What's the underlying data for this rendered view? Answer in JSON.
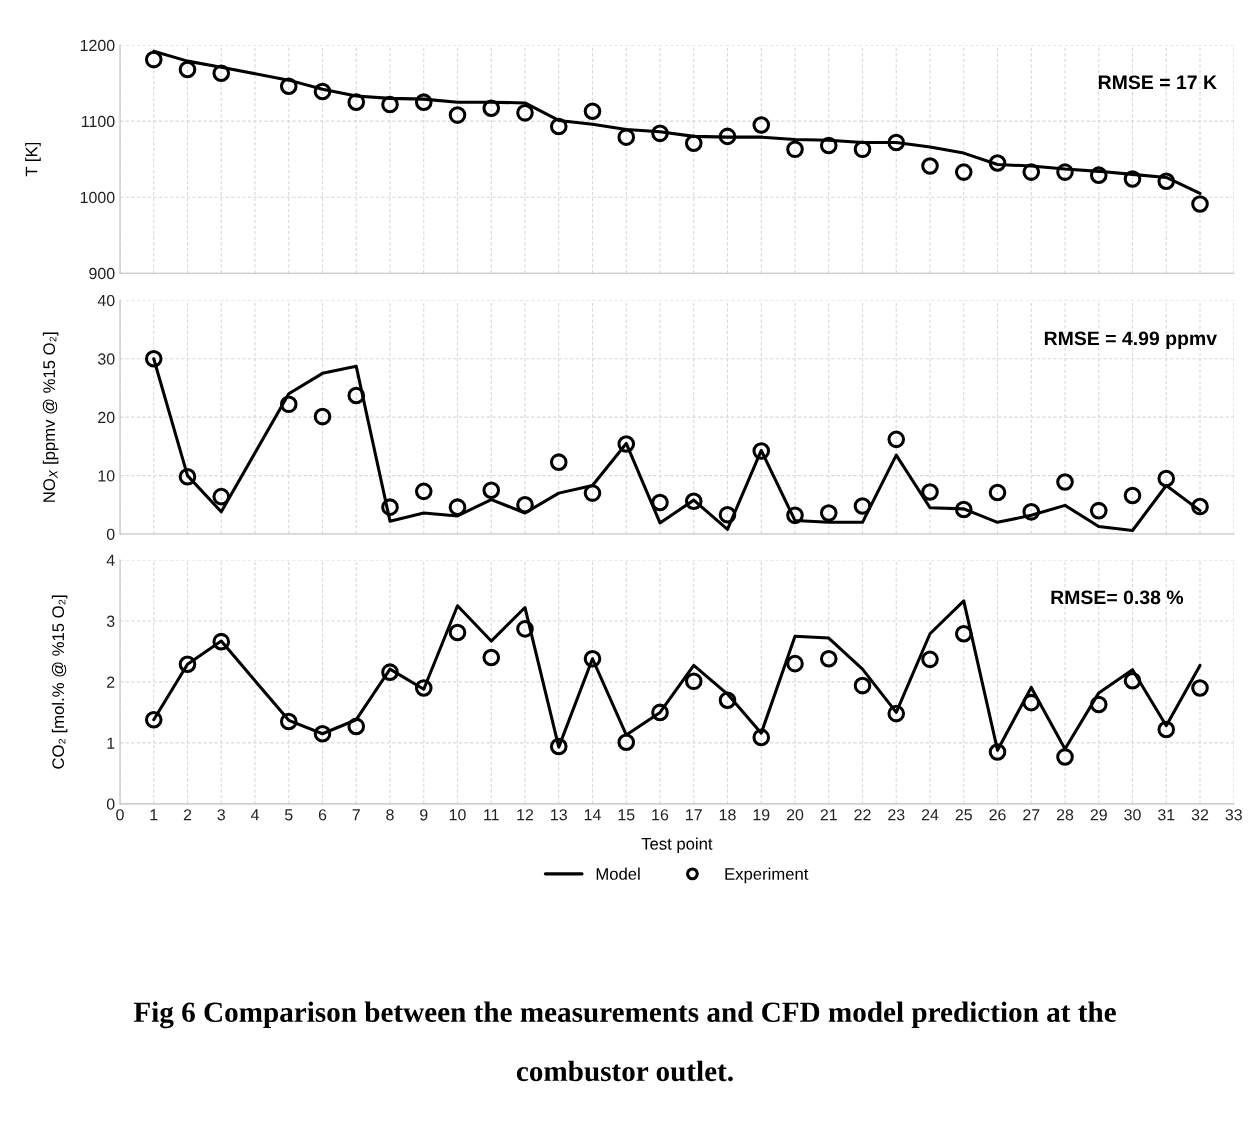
{
  "chart_data": [
    {
      "type": "line",
      "ylabel": "T [K]",
      "x": [
        1,
        2,
        3,
        5,
        6,
        7,
        8,
        9,
        10,
        11,
        12,
        13,
        14,
        15,
        16,
        17,
        18,
        19,
        20,
        21,
        22,
        23,
        24,
        25,
        26,
        27,
        28,
        29,
        30,
        31,
        32
      ],
      "xlim": [
        0,
        33
      ],
      "xticks": [
        0,
        1,
        2,
        3,
        4,
        5,
        6,
        7,
        8,
        9,
        10,
        11,
        12,
        13,
        14,
        15,
        16,
        17,
        18,
        19,
        20,
        21,
        22,
        23,
        24,
        25,
        26,
        27,
        28,
        29,
        30,
        31,
        32,
        33
      ],
      "ylim": [
        900,
        1200
      ],
      "yticks": [
        900,
        1000,
        1100,
        1200
      ],
      "tick_labels": "y",
      "grid": true,
      "annotations": [
        "RMSE = 17 K"
      ],
      "series": [
        {
          "color": "#000000",
          "marker": "none",
          "line_style": "solid",
          "values": [
            1192,
            1179,
            1171,
            1154,
            1142,
            1133,
            1130,
            1129,
            1125,
            1125,
            1124,
            1101,
            1096,
            1089,
            1086,
            1080,
            1079,
            1079,
            1076,
            1075,
            1072,
            1072,
            1066,
            1058,
            1043,
            1041,
            1037,
            1034,
            1030,
            1026,
            1005
          ]
        },
        {
          "type": "scatter",
          "color": "#000000",
          "marker": "circle",
          "values": [
            1181,
            1168,
            1163,
            1146,
            1139,
            1125,
            1122,
            1125,
            1108,
            1117,
            1111,
            1093,
            1113,
            1079,
            1084,
            1071,
            1080,
            1095,
            1063,
            1068,
            1063,
            1072,
            1041,
            1033,
            1045,
            1033,
            1033,
            1029,
            1024,
            1021,
            991
          ]
        }
      ]
    },
    {
      "type": "line",
      "ylabel": "NO$_{X}$ [ppmv @ %15 O₂]",
      "x": [
        1,
        2,
        3,
        5,
        6,
        7,
        8,
        9,
        10,
        11,
        12,
        13,
        14,
        15,
        16,
        17,
        18,
        19,
        20,
        21,
        22,
        23,
        24,
        25,
        26,
        27,
        28,
        29,
        30,
        31,
        32
      ],
      "xlim": [
        0,
        33
      ],
      "xticks": [
        0,
        1,
        2,
        3,
        4,
        5,
        6,
        7,
        8,
        9,
        10,
        11,
        12,
        13,
        14,
        15,
        16,
        17,
        18,
        19,
        20,
        21,
        22,
        23,
        24,
        25,
        26,
        27,
        28,
        29,
        30,
        31,
        32,
        33
      ],
      "ylim": [
        0,
        40
      ],
      "yticks": [
        0,
        10,
        20,
        30,
        40
      ],
      "tick_labels": "y",
      "grid": true,
      "annotations": [
        "RMSE = 4.99 ppmv"
      ],
      "series": [
        {
          "color": "#000000",
          "marker": "none",
          "line_style": "solid",
          "values": [
            30,
            10,
            3.8,
            24,
            27.5,
            28.7,
            2.2,
            3.6,
            3.1,
            5.9,
            3.6,
            7.0,
            8.3,
            15.5,
            1.9,
            5.8,
            0.8,
            14.3,
            2.3,
            2.0,
            2.0,
            13.5,
            4.5,
            4.3,
            2.0,
            3.2,
            4.9,
            1.3,
            0.6,
            8.3,
            4.0
          ]
        },
        {
          "type": "scatter",
          "color": "#000000",
          "marker": "circle",
          "values": [
            30,
            9.8,
            6.4,
            22.2,
            20.1,
            23.7,
            4.6,
            7.3,
            4.6,
            7.5,
            5.0,
            12.3,
            7.0,
            15.4,
            5.4,
            5.6,
            3.3,
            14.2,
            3.2,
            3.6,
            4.8,
            16.2,
            7.2,
            4.2,
            7.1,
            3.8,
            8.9,
            4.0,
            6.6,
            9.5,
            4.7
          ]
        }
      ]
    },
    {
      "type": "line",
      "ylabel": "CO₂ [mol.% @ %15 O₂]",
      "xlabel": "Test point",
      "x": [
        1,
        2,
        3,
        5,
        6,
        7,
        8,
        9,
        10,
        11,
        12,
        13,
        14,
        15,
        16,
        17,
        18,
        19,
        20,
        21,
        22,
        23,
        24,
        25,
        26,
        27,
        28,
        29,
        30,
        31,
        32
      ],
      "xlim": [
        0,
        33
      ],
      "xticks": [
        0,
        1,
        2,
        3,
        4,
        5,
        6,
        7,
        8,
        9,
        10,
        11,
        12,
        13,
        14,
        15,
        16,
        17,
        18,
        19,
        20,
        21,
        22,
        23,
        24,
        25,
        26,
        27,
        28,
        29,
        30,
        31,
        32,
        33
      ],
      "ylim": [
        0,
        4
      ],
      "yticks": [
        0,
        1,
        2,
        3,
        4
      ],
      "grid": true,
      "legend": "bottom",
      "annotations": [
        "RMSE= 0.38 %",
        "Fig 6 Comparison between the measurements and CFD model prediction at the\ncombustor outlet."
      ],
      "series": [
        {
          "name": "Model",
          "color": "#000000",
          "marker": "none",
          "line_style": "solid",
          "values": [
            1.38,
            2.29,
            2.67,
            1.37,
            1.15,
            1.38,
            2.21,
            1.88,
            3.25,
            2.67,
            3.22,
            0.93,
            2.38,
            1.13,
            1.5,
            2.27,
            1.8,
            1.16,
            2.75,
            2.72,
            2.21,
            1.5,
            2.79,
            3.33,
            0.88,
            1.91,
            0.9,
            1.82,
            2.2,
            1.28,
            2.27
          ]
        },
        {
          "name": "Experiment",
          "type": "scatter",
          "color": "#000000",
          "marker": "circle",
          "values": [
            1.38,
            2.29,
            2.66,
            1.35,
            1.15,
            1.27,
            2.16,
            1.9,
            2.81,
            2.4,
            2.87,
            0.94,
            2.38,
            1.01,
            1.5,
            2.01,
            1.7,
            1.09,
            2.3,
            2.38,
            1.94,
            1.48,
            2.37,
            2.79,
            0.85,
            1.66,
            0.77,
            1.63,
            2.02,
            1.22,
            1.9
          ]
        }
      ]
    }
  ]
}
